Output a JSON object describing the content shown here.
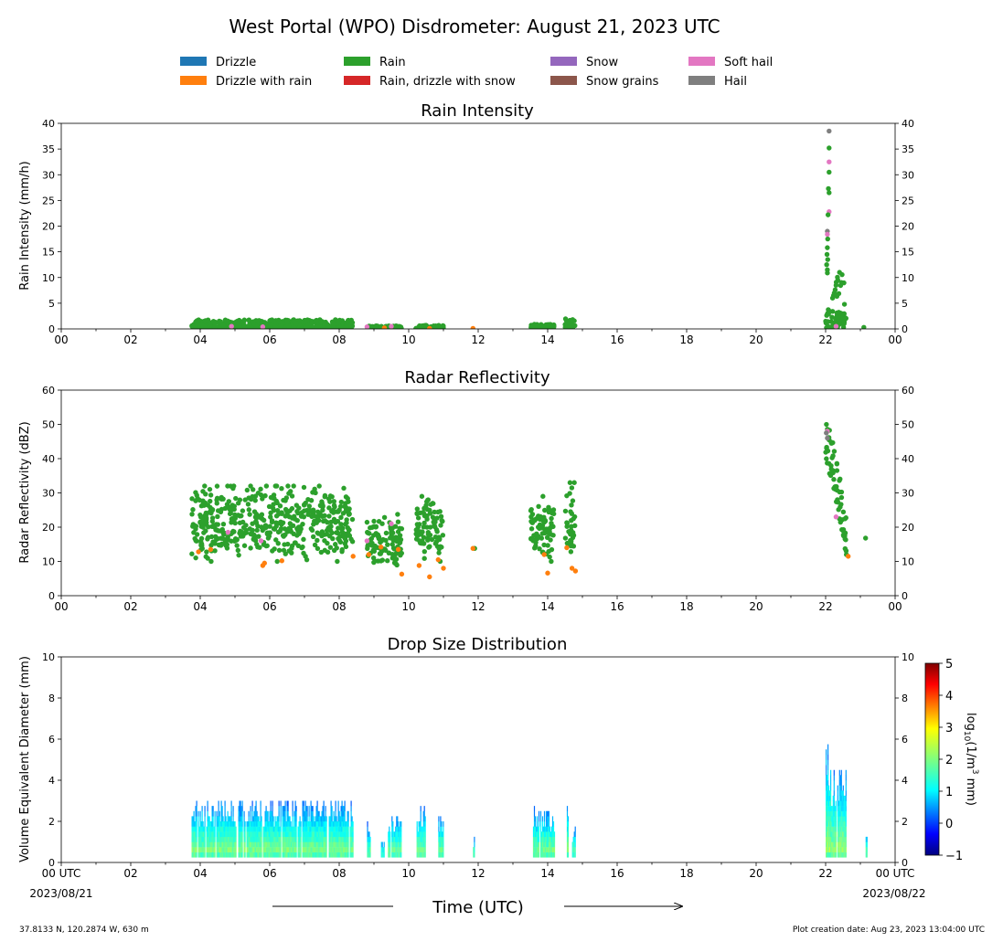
{
  "title": "West Portal (WPO) Disdrometer: August 21, 2023 UTC",
  "legend": [
    {
      "label": "Drizzle",
      "color": "#1f77b4"
    },
    {
      "label": "Drizzle with rain",
      "color": "#ff7f0e"
    },
    {
      "label": "Rain",
      "color": "#2ca02c"
    },
    {
      "label": "Rain, drizzle with snow",
      "color": "#d62728"
    },
    {
      "label": "Snow",
      "color": "#9467bd"
    },
    {
      "label": "Snow grains",
      "color": "#8c564b"
    },
    {
      "label": "Soft hail",
      "color": "#e377c2"
    },
    {
      "label": "Hail",
      "color": "#7f7f7f"
    }
  ],
  "x_ticks": [
    "00",
    "02",
    "04",
    "06",
    "08",
    "10",
    "12",
    "14",
    "16",
    "18",
    "20",
    "22",
    "00"
  ],
  "bottom_x_ticks": [
    "00 UTC",
    "02",
    "04",
    "06",
    "08",
    "10",
    "12",
    "14",
    "16",
    "18",
    "20",
    "22",
    "00 UTC"
  ],
  "date_start": "2023/08/21",
  "date_end": "2023/08/22",
  "xlabel": "Time (UTC)",
  "footer_left": "37.8133 N, 120.2874 W, 630 m",
  "footer_right": "Plot creation date: Aug 23, 2023 13:04:00 UTC",
  "colorbar": {
    "label": "log10(1/m3 mm)",
    "ticks": [
      "5",
      "4",
      "3",
      "2",
      "1",
      "0",
      "−1"
    ],
    "range": [
      -1,
      5
    ]
  },
  "chart_data": [
    {
      "type": "scatter",
      "title": "Rain Intensity",
      "xlabel": "",
      "ylabel": "Rain Intensity (mm/h)",
      "xlim": [
        0,
        24
      ],
      "ylim": [
        0,
        40
      ],
      "y_ticks": [
        "0",
        "5",
        "10",
        "15",
        "20",
        "25",
        "30",
        "35",
        "40"
      ],
      "segments": [
        {
          "x0": 3.75,
          "x1": 8.4,
          "ymax": 1.8,
          "category": "Rain"
        },
        {
          "x0": 8.8,
          "x1": 9.8,
          "ymax": 0.6,
          "category": "Rain"
        },
        {
          "x0": 10.2,
          "x1": 11.0,
          "ymax": 0.8,
          "category": "Rain"
        },
        {
          "x0": 13.5,
          "x1": 14.2,
          "ymax": 0.9,
          "category": "Rain"
        },
        {
          "x0": 14.5,
          "x1": 14.8,
          "ymax": 2.0,
          "category": "Rain"
        },
        {
          "x0": 22.0,
          "x1": 22.6,
          "ymax": 11,
          "category": "Rain"
        }
      ],
      "points": [
        {
          "x": 22.1,
          "y": 38.5,
          "category": "Hail"
        },
        {
          "x": 22.1,
          "y": 35.2,
          "category": "Rain"
        },
        {
          "x": 22.1,
          "y": 32.5,
          "category": "Soft hail"
        },
        {
          "x": 22.1,
          "y": 30.5,
          "category": "Rain"
        },
        {
          "x": 22.08,
          "y": 27.3,
          "category": "Rain"
        },
        {
          "x": 22.1,
          "y": 26.5,
          "category": "Rain"
        },
        {
          "x": 22.1,
          "y": 22.8,
          "category": "Soft hail"
        },
        {
          "x": 22.07,
          "y": 22.2,
          "category": "Rain"
        },
        {
          "x": 22.05,
          "y": 19.0,
          "category": "Hail"
        },
        {
          "x": 22.05,
          "y": 18.4,
          "category": "Soft hail"
        },
        {
          "x": 22.06,
          "y": 17.5,
          "category": "Rain"
        },
        {
          "x": 22.05,
          "y": 15.8,
          "category": "Rain"
        },
        {
          "x": 22.04,
          "y": 14.5,
          "category": "Rain"
        },
        {
          "x": 22.06,
          "y": 13.5,
          "category": "Rain"
        },
        {
          "x": 22.03,
          "y": 12.5,
          "category": "Rain"
        },
        {
          "x": 22.05,
          "y": 11.5,
          "category": "Rain"
        },
        {
          "x": 22.4,
          "y": 11.0,
          "category": "Rain"
        },
        {
          "x": 22.35,
          "y": 9.5,
          "category": "Rain"
        },
        {
          "x": 22.3,
          "y": 8.5,
          "category": "Rain"
        },
        {
          "x": 22.25,
          "y": 7.0,
          "category": "Rain"
        },
        {
          "x": 22.2,
          "y": 6.0,
          "category": "Rain"
        },
        {
          "x": 22.3,
          "y": 0.5,
          "category": "Soft hail"
        },
        {
          "x": 23.1,
          "y": 0.3,
          "category": "Rain"
        },
        {
          "x": 4.9,
          "y": 0.5,
          "category": "Soft hail"
        },
        {
          "x": 5.8,
          "y": 0.4,
          "category": "Soft hail"
        },
        {
          "x": 8.8,
          "y": 0.4,
          "category": "Soft hail"
        },
        {
          "x": 9.5,
          "y": 0.5,
          "category": "Soft hail"
        },
        {
          "x": 9.3,
          "y": 0.2,
          "category": "Drizzle with rain"
        },
        {
          "x": 10.6,
          "y": 0.1,
          "category": "Drizzle with rain"
        },
        {
          "x": 11.85,
          "y": 0.1,
          "category": "Drizzle with rain"
        }
      ]
    },
    {
      "type": "scatter",
      "title": "Radar Reflectivity",
      "xlabel": "",
      "ylabel": "Radar Reflectivity (dBZ)",
      "xlim": [
        0,
        24
      ],
      "ylim": [
        0,
        60
      ],
      "y_ticks": [
        "0",
        "10",
        "20",
        "30",
        "40",
        "50",
        "60"
      ],
      "segments": [
        {
          "x0": 3.75,
          "x1": 8.4,
          "ymin": 10,
          "ymax": 32,
          "category": "Rain"
        },
        {
          "x0": 8.8,
          "x1": 9.8,
          "ymin": 8,
          "ymax": 25,
          "category": "Rain"
        },
        {
          "x0": 10.2,
          "x1": 11.0,
          "ymin": 10,
          "ymax": 29,
          "category": "Rain"
        },
        {
          "x0": 13.5,
          "x1": 14.2,
          "ymin": 10,
          "ymax": 29,
          "category": "Rain"
        },
        {
          "x0": 14.5,
          "x1": 14.8,
          "ymin": 8,
          "ymax": 33,
          "category": "Rain"
        },
        {
          "x0": 22.0,
          "x1": 22.6,
          "ymin": 12,
          "ymax": 51,
          "category": "Rain"
        }
      ],
      "points": [
        {
          "x": 23.15,
          "y": 16.8,
          "category": "Rain"
        },
        {
          "x": 11.9,
          "y": 13.8,
          "category": "Rain"
        },
        {
          "x": 3.95,
          "y": 12.8,
          "category": "Drizzle with rain"
        },
        {
          "x": 4.3,
          "y": 13.5,
          "category": "Drizzle with rain"
        },
        {
          "x": 5.8,
          "y": 8.8,
          "category": "Drizzle with rain"
        },
        {
          "x": 5.85,
          "y": 9.5,
          "category": "Drizzle with rain"
        },
        {
          "x": 6.35,
          "y": 10.2,
          "category": "Drizzle with rain"
        },
        {
          "x": 8.4,
          "y": 11.5,
          "category": "Drizzle with rain"
        },
        {
          "x": 8.85,
          "y": 12.0,
          "category": "Drizzle with rain"
        },
        {
          "x": 9.2,
          "y": 14.2,
          "category": "Drizzle with rain"
        },
        {
          "x": 9.7,
          "y": 13.5,
          "category": "Drizzle with rain"
        },
        {
          "x": 9.8,
          "y": 6.3,
          "category": "Drizzle with rain"
        },
        {
          "x": 10.3,
          "y": 8.8,
          "category": "Drizzle with rain"
        },
        {
          "x": 10.6,
          "y": 5.5,
          "category": "Drizzle with rain"
        },
        {
          "x": 10.85,
          "y": 10.5,
          "category": "Drizzle with rain"
        },
        {
          "x": 11.0,
          "y": 8.0,
          "category": "Drizzle with rain"
        },
        {
          "x": 14.0,
          "y": 6.6,
          "category": "Drizzle with rain"
        },
        {
          "x": 13.9,
          "y": 12.0,
          "category": "Drizzle with rain"
        },
        {
          "x": 14.55,
          "y": 14.0,
          "category": "Drizzle with rain"
        },
        {
          "x": 14.7,
          "y": 8.0,
          "category": "Drizzle with rain"
        },
        {
          "x": 14.8,
          "y": 7.2,
          "category": "Drizzle with rain"
        },
        {
          "x": 22.65,
          "y": 11.5,
          "category": "Drizzle with rain"
        },
        {
          "x": 11.85,
          "y": 13.8,
          "category": "Drizzle with rain"
        },
        {
          "x": 4.8,
          "y": 18.5,
          "category": "Soft hail"
        },
        {
          "x": 5.75,
          "y": 16.0,
          "category": "Soft hail"
        },
        {
          "x": 8.8,
          "y": 16.0,
          "category": "Soft hail"
        },
        {
          "x": 9.5,
          "y": 21.0,
          "category": "Soft hail"
        },
        {
          "x": 22.05,
          "y": 48.0,
          "category": "Soft hail"
        },
        {
          "x": 22.3,
          "y": 23.0,
          "category": "Soft hail"
        },
        {
          "x": 22.02,
          "y": 47.5,
          "category": "Hail"
        },
        {
          "x": 22.05,
          "y": 46.0,
          "category": "Hail"
        }
      ]
    },
    {
      "type": "heatmap",
      "title": "Drop Size Distribution",
      "xlabel": "",
      "ylabel": "Volume Equivalent Diameter (mm)",
      "xlim": [
        0,
        24
      ],
      "ylim": [
        0,
        10
      ],
      "y_ticks": [
        "0",
        "2",
        "4",
        "6",
        "8",
        "10"
      ],
      "columns": [
        {
          "x0": 3.75,
          "x1": 8.4,
          "dmax": 3.0
        },
        {
          "x0": 8.8,
          "x1": 8.9,
          "dmax": 1.8
        },
        {
          "x0": 9.2,
          "x1": 9.3,
          "dmax": 1.0
        },
        {
          "x0": 9.4,
          "x1": 9.8,
          "dmax": 2.2
        },
        {
          "x0": 10.2,
          "x1": 10.5,
          "dmax": 2.6
        },
        {
          "x0": 10.85,
          "x1": 11.0,
          "dmax": 2.2
        },
        {
          "x0": 11.85,
          "x1": 11.9,
          "dmax": 1.3
        },
        {
          "x0": 13.55,
          "x1": 14.2,
          "dmax": 2.6
        },
        {
          "x0": 14.55,
          "x1": 14.6,
          "dmax": 3.0
        },
        {
          "x0": 14.7,
          "x1": 14.8,
          "dmax": 1.6
        },
        {
          "x0": 22.0,
          "x1": 22.15,
          "dmax": 6.0
        },
        {
          "x0": 22.15,
          "x1": 22.6,
          "dmax": 4.6
        },
        {
          "x0": 23.15,
          "x1": 23.2,
          "dmax": 1.6
        }
      ]
    }
  ]
}
